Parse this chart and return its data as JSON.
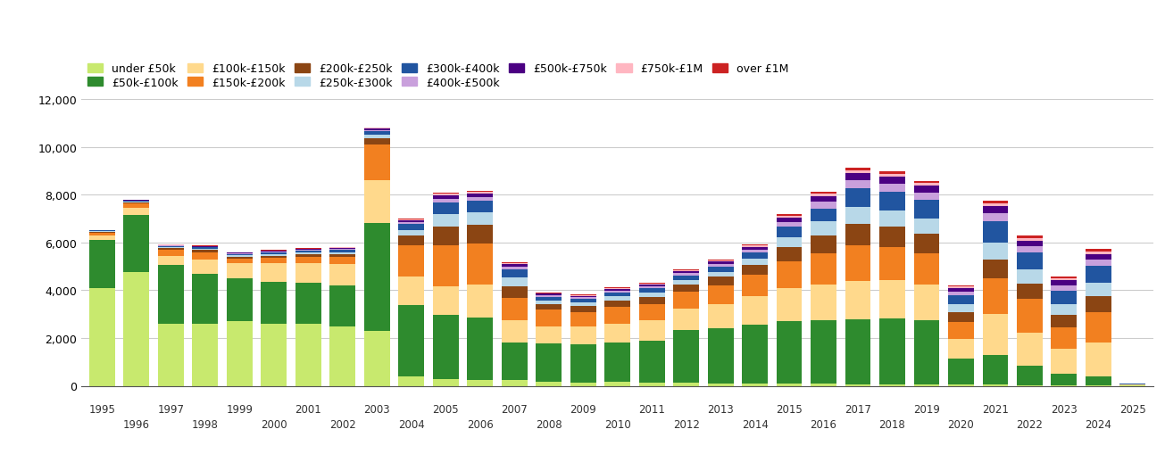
{
  "years": [
    1995,
    1996,
    1997,
    1998,
    1999,
    2000,
    2001,
    2002,
    2003,
    2004,
    2005,
    2006,
    2007,
    2008,
    2009,
    2010,
    2011,
    2012,
    2013,
    2014,
    2015,
    2016,
    2017,
    2018,
    2019,
    2020,
    2021,
    2022,
    2023,
    2024,
    2025
  ],
  "categories": [
    "under £50k",
    "£50k-£100k",
    "£100k-£150k",
    "£150k-£200k",
    "£200k-£250k",
    "£250k-£300k",
    "£300k-£400k",
    "£400k-£500k",
    "£500k-£750k",
    "£750k-£1M",
    "over £1M"
  ],
  "colors": [
    "#c8e96e",
    "#2e8b2e",
    "#ffd98c",
    "#f28020",
    "#8b4513",
    "#b8d8e8",
    "#2155a0",
    "#c9a0dc",
    "#4b0082",
    "#ffb6c1",
    "#cc2222"
  ],
  "data": {
    "under £50k": [
      4100,
      4750,
      2600,
      2600,
      2700,
      2600,
      2600,
      2500,
      2300,
      380,
      280,
      250,
      230,
      180,
      140,
      150,
      130,
      130,
      110,
      110,
      100,
      80,
      70,
      60,
      50,
      55,
      45,
      35,
      25,
      18,
      5
    ],
    "£50k-£100k": [
      2000,
      2400,
      2450,
      2100,
      1800,
      1750,
      1700,
      1700,
      4500,
      3000,
      2700,
      2600,
      1600,
      1600,
      1600,
      1650,
      1750,
      2200,
      2300,
      2450,
      2600,
      2650,
      2700,
      2750,
      2700,
      1100,
      1250,
      800,
      480,
      380,
      25
    ],
    "£100k-£150k": [
      200,
      300,
      400,
      600,
      650,
      800,
      850,
      900,
      1800,
      1200,
      1200,
      1400,
      900,
      700,
      750,
      800,
      850,
      900,
      1000,
      1200,
      1400,
      1500,
      1600,
      1600,
      1500,
      800,
      1700,
      1400,
      1050,
      1400,
      10
    ],
    "£150k-£200k": [
      120,
      180,
      250,
      300,
      180,
      200,
      250,
      280,
      1500,
      1300,
      1700,
      1700,
      950,
      700,
      600,
      700,
      700,
      700,
      800,
      900,
      1100,
      1300,
      1500,
      1400,
      1300,
      700,
      1500,
      1400,
      900,
      1300,
      15
    ],
    "£200k-£250k": [
      40,
      55,
      70,
      90,
      80,
      100,
      110,
      130,
      250,
      400,
      800,
      800,
      500,
      250,
      250,
      280,
      300,
      300,
      350,
      400,
      600,
      750,
      900,
      850,
      800,
      420,
      800,
      650,
      520,
      650,
      8
    ],
    "£250k-£300k": [
      25,
      35,
      45,
      55,
      55,
      70,
      75,
      90,
      150,
      250,
      500,
      500,
      350,
      150,
      150,
      170,
      180,
      200,
      220,
      260,
      430,
      600,
      700,
      680,
      650,
      330,
      700,
      580,
      460,
      580,
      5
    ],
    "£300k-£400k": [
      25,
      35,
      45,
      55,
      55,
      70,
      75,
      90,
      150,
      250,
      500,
      500,
      350,
      150,
      150,
      170,
      180,
      200,
      220,
      260,
      430,
      550,
      800,
      800,
      780,
      380,
      900,
      700,
      560,
      700,
      8
    ],
    "£400k-£500k": [
      8,
      12,
      18,
      22,
      25,
      30,
      35,
      45,
      60,
      80,
      150,
      150,
      100,
      60,
      60,
      70,
      80,
      90,
      100,
      120,
      190,
      270,
      340,
      330,
      310,
      160,
      330,
      270,
      220,
      260,
      3
    ],
    "£500k-£750k": [
      8,
      12,
      18,
      22,
      25,
      30,
      35,
      45,
      60,
      80,
      150,
      150,
      100,
      60,
      60,
      70,
      80,
      90,
      100,
      120,
      190,
      240,
      300,
      290,
      280,
      145,
      290,
      240,
      200,
      235,
      3
    ],
    "£750k-£1M": [
      4,
      6,
      8,
      10,
      12,
      15,
      17,
      22,
      30,
      40,
      60,
      60,
      40,
      25,
      25,
      30,
      35,
      40,
      45,
      55,
      75,
      100,
      120,
      115,
      110,
      60,
      120,
      100,
      80,
      100,
      2
    ],
    "over £1M": [
      4,
      6,
      8,
      10,
      12,
      15,
      17,
      22,
      30,
      40,
      60,
      60,
      40,
      25,
      25,
      30,
      35,
      40,
      45,
      55,
      75,
      100,
      120,
      115,
      110,
      60,
      120,
      100,
      80,
      100,
      2
    ]
  },
  "ylim": [
    0,
    12000
  ],
  "yticks": [
    0,
    2000,
    4000,
    6000,
    8000,
    10000,
    12000
  ],
  "background_color": "#ffffff",
  "grid_color": "#cccccc"
}
